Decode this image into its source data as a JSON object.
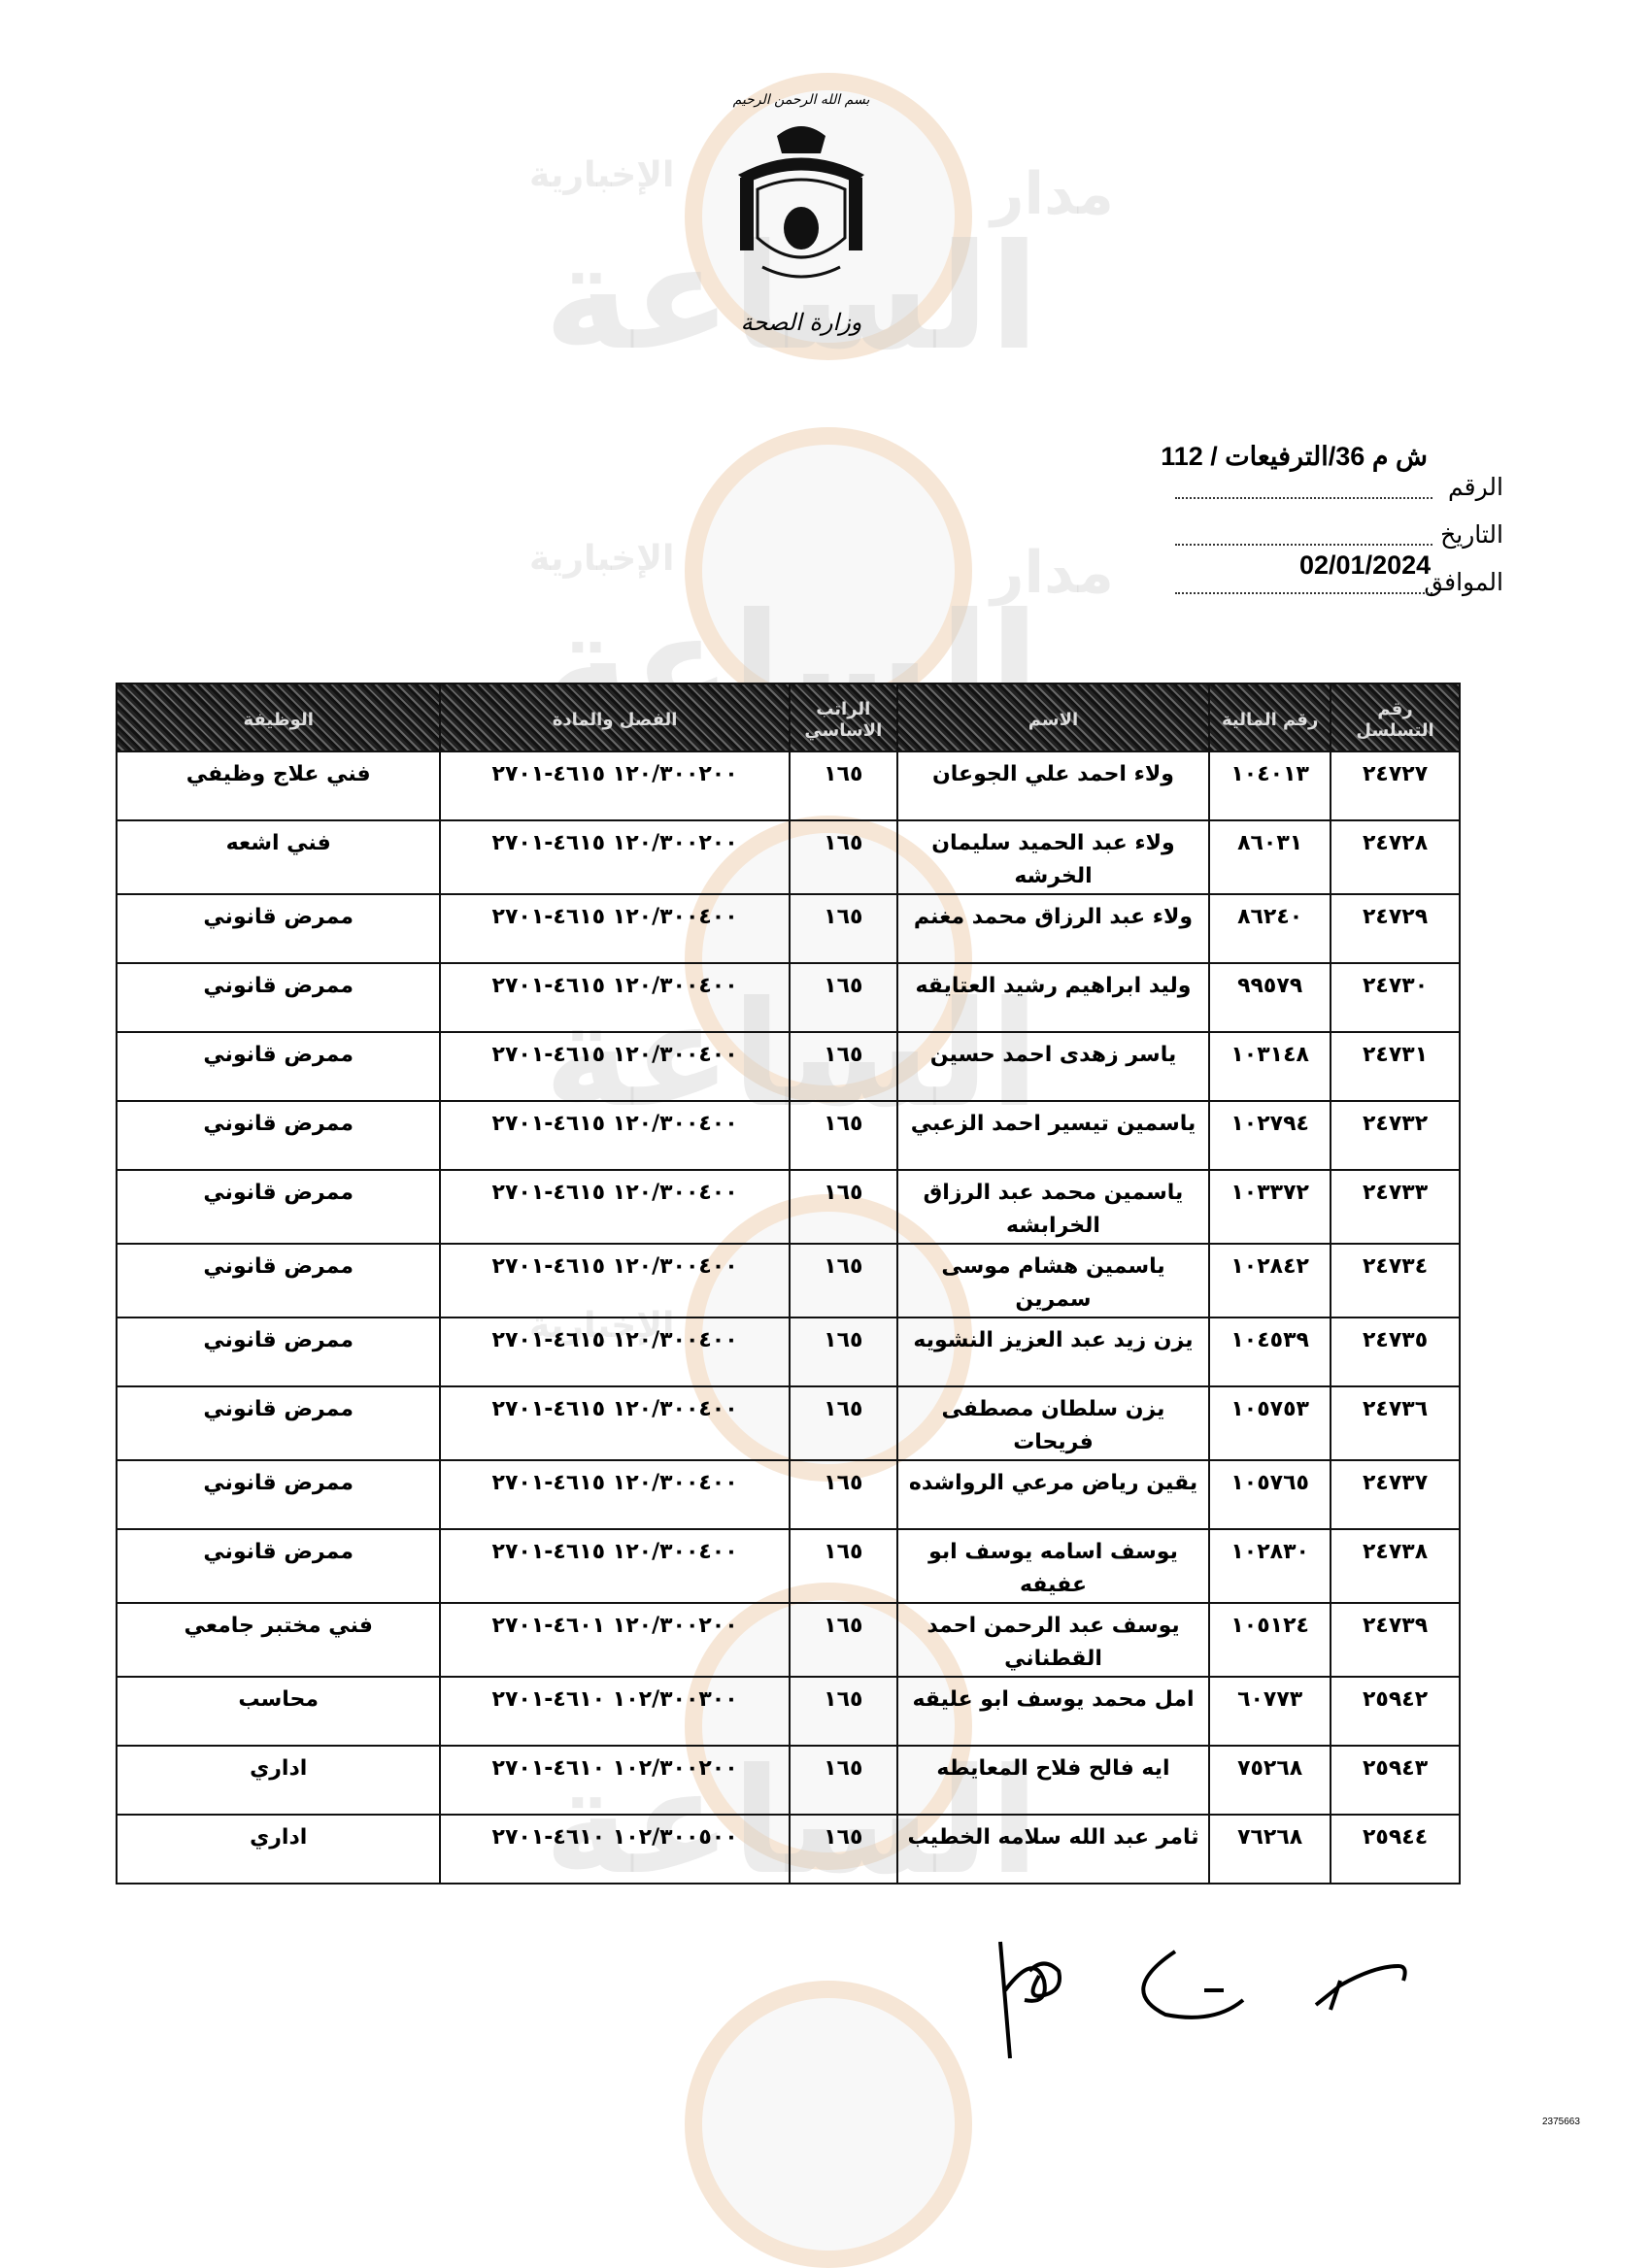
{
  "watermark": {
    "brand": "مدار الساعة",
    "subtitle": "الإخبارية"
  },
  "letterhead": {
    "basmala": "بسم الله الرحمن الرحيم",
    "ministry": "وزارة الصحة"
  },
  "reference": {
    "number": "ش م 36/الترفيعات / 112",
    "number_label": "الرقم",
    "date_label": "التاريخ",
    "date": "02/01/2024",
    "corresponding_label": "الموافق"
  },
  "table": {
    "headers": [
      "رقم التسلسل",
      "رقم المالية",
      "الاسم",
      "الراتب الاساسي",
      "الفصل والمادة",
      "الوظيفة"
    ],
    "rows": [
      {
        "serial": "٢٤٧٢٧",
        "fin_no": "١٠٤٠١٣",
        "name": "ولاء احمد علي الجوعان",
        "salary": "١٦٥",
        "code": "١٢٠/٣٠٠٢٠٠ ٤٦١٥-٢٧٠١",
        "job": "فني علاج وظيفي"
      },
      {
        "serial": "٢٤٧٢٨",
        "fin_no": "٨٦٠٣١",
        "name": "ولاء عبد الحميد سليمان الخرشه",
        "salary": "١٦٥",
        "code": "١٢٠/٣٠٠٢٠٠ ٤٦١٥-٢٧٠١",
        "job": "فني اشعه"
      },
      {
        "serial": "٢٤٧٢٩",
        "fin_no": "٨٦٢٤٠",
        "name": "ولاء عبد الرزاق محمد مغنم",
        "salary": "١٦٥",
        "code": "١٢٠/٣٠٠٤٠٠ ٤٦١٥-٢٧٠١",
        "job": "ممرض قانوني"
      },
      {
        "serial": "٢٤٧٣٠",
        "fin_no": "٩٩٥٧٩",
        "name": "وليد ابراهيم رشيد العتايقه",
        "salary": "١٦٥",
        "code": "١٢٠/٣٠٠٤٠٠ ٤٦١٥-٢٧٠١",
        "job": "ممرض قانوني"
      },
      {
        "serial": "٢٤٧٣١",
        "fin_no": "١٠٣١٤٨",
        "name": "ياسر زهدى احمد حسين",
        "salary": "١٦٥",
        "code": "١٢٠/٣٠٠٤٠٠ ٤٦١٥-٢٧٠١",
        "job": "ممرض قانوني"
      },
      {
        "serial": "٢٤٧٣٢",
        "fin_no": "١٠٢٧٩٤",
        "name": "ياسمين تيسير احمد الزعبي",
        "salary": "١٦٥",
        "code": "١٢٠/٣٠٠٤٠٠ ٤٦١٥-٢٧٠١",
        "job": "ممرض قانوني"
      },
      {
        "serial": "٢٤٧٣٣",
        "fin_no": "١٠٣٣٧٢",
        "name": "ياسمين محمد عبد الرزاق الخرابشه",
        "salary": "١٦٥",
        "code": "١٢٠/٣٠٠٤٠٠ ٤٦١٥-٢٧٠١",
        "job": "ممرض قانوني"
      },
      {
        "serial": "٢٤٧٣٤",
        "fin_no": "١٠٢٨٤٢",
        "name": "ياسمين هشام موسى سمرين",
        "salary": "١٦٥",
        "code": "١٢٠/٣٠٠٤٠٠ ٤٦١٥-٢٧٠١",
        "job": "ممرض قانوني"
      },
      {
        "serial": "٢٤٧٣٥",
        "fin_no": "١٠٤٥٣٩",
        "name": "يزن زيد عبد العزيز النشويه",
        "salary": "١٦٥",
        "code": "١٢٠/٣٠٠٤٠٠ ٤٦١٥-٢٧٠١",
        "job": "ممرض قانوني"
      },
      {
        "serial": "٢٤٧٣٦",
        "fin_no": "١٠٥٧٥٣",
        "name": "يزن سلطان مصطفى فريحات",
        "salary": "١٦٥",
        "code": "١٢٠/٣٠٠٤٠٠ ٤٦١٥-٢٧٠١",
        "job": "ممرض قانوني"
      },
      {
        "serial": "٢٤٧٣٧",
        "fin_no": "١٠٥٧٦٥",
        "name": "يقين رياض مرعي الرواشده",
        "salary": "١٦٥",
        "code": "١٢٠/٣٠٠٤٠٠ ٤٦١٥-٢٧٠١",
        "job": "ممرض قانوني"
      },
      {
        "serial": "٢٤٧٣٨",
        "fin_no": "١٠٢٨٣٠",
        "name": "يوسف اسامه يوسف ابو عفيفه",
        "salary": "١٦٥",
        "code": "١٢٠/٣٠٠٤٠٠ ٤٦١٥-٢٧٠١",
        "job": "ممرض قانوني"
      },
      {
        "serial": "٢٤٧٣٩",
        "fin_no": "١٠٥١٢٤",
        "name": "يوسف عبد الرحمن احمد القطناني",
        "salary": "١٦٥",
        "code": "١٢٠/٣٠٠٢٠٠ ٤٦٠١-٢٧٠١",
        "job": "فني مختبر جامعي"
      },
      {
        "serial": "٢٥٩٤٢",
        "fin_no": "٦٠٧٧٣",
        "name": "امل محمد يوسف ابو عليقه",
        "salary": "١٦٥",
        "code": "١٠٢/٣٠٠٣٠٠ ٤٦١٠-٢٧٠١",
        "job": "محاسب"
      },
      {
        "serial": "٢٥٩٤٣",
        "fin_no": "٧٥٢٦٨",
        "name": "ايه فالح فلاح المعايطه",
        "salary": "١٦٥",
        "code": "١٠٢/٣٠٠٢٠٠ ٤٦١٠-٢٧٠١",
        "job": "اداري"
      },
      {
        "serial": "٢٥٩٤٤",
        "fin_no": "٧٦٢٦٨",
        "name": "ثامر عبد الله سلامه الخطيب",
        "salary": "١٦٥",
        "code": "١٠٢/٣٠٠٥٠٠ ٤٦١٠-٢٧٠١",
        "job": "اداري"
      }
    ]
  },
  "footer": {
    "doc_id": "2375663"
  }
}
